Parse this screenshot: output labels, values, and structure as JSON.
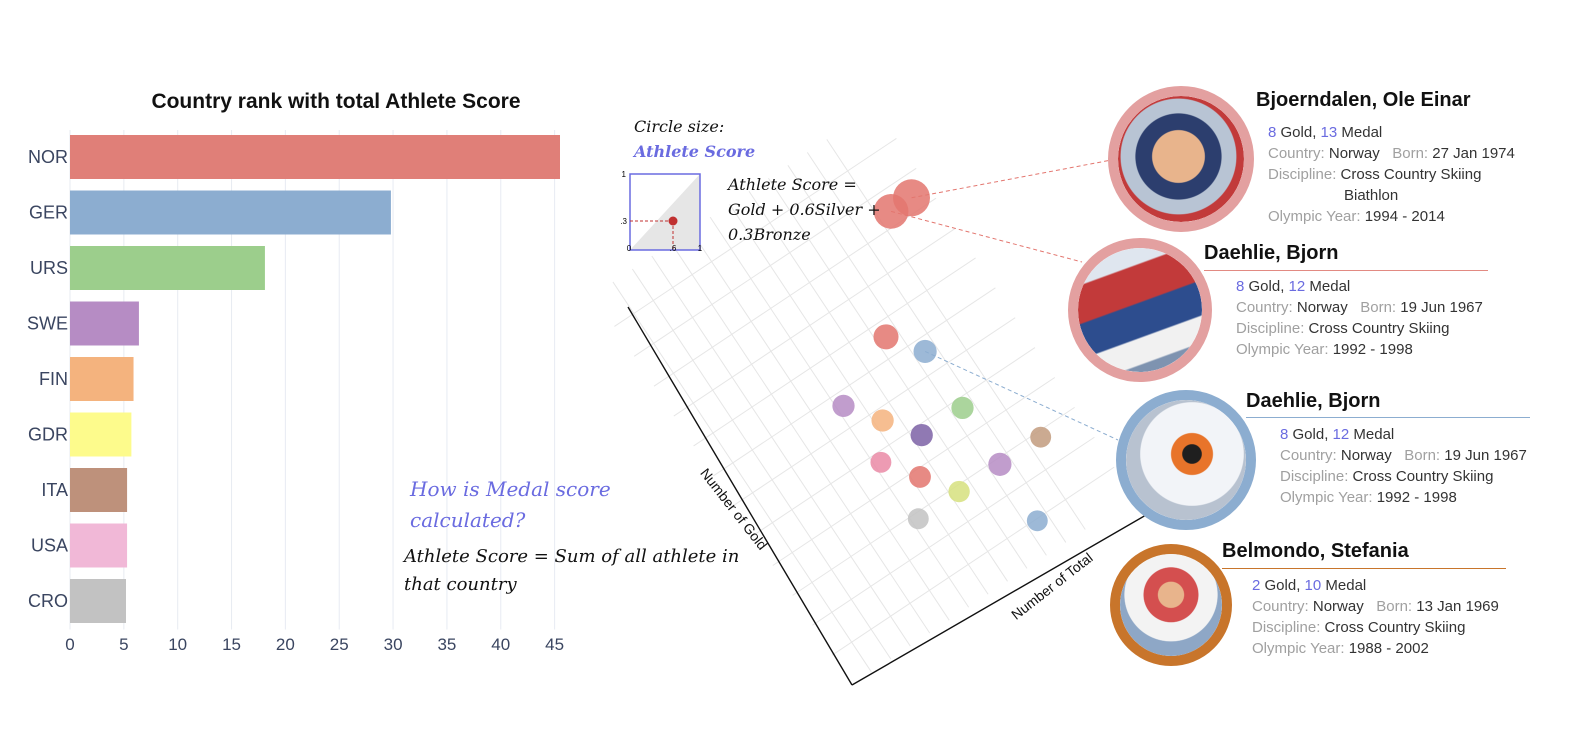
{
  "chart_data": [
    {
      "type": "bar",
      "title": "Country rank with total Athlete Score",
      "orientation": "horizontal",
      "categories": [
        "NOR",
        "GER",
        "URS",
        "SWE",
        "FIN",
        "GDR",
        "ITA",
        "USA",
        "CRO"
      ],
      "values": [
        45.5,
        29.8,
        18.1,
        6.4,
        5.9,
        5.7,
        5.3,
        5.3,
        5.2
      ],
      "colors": [
        "#e07f78",
        "#8cadd0",
        "#9cce8c",
        "#b68cc4",
        "#f4b37e",
        "#fdfb8c",
        "#be917b",
        "#f1b8d7",
        "#c2c2c2"
      ],
      "xlim": [
        0,
        46
      ],
      "x_ticks": [
        "0",
        "5",
        "10",
        "15",
        "20",
        "25",
        "30",
        "35",
        "40",
        "45"
      ],
      "grid": true
    },
    {
      "type": "scatter",
      "xlabel": "Number of Total",
      "ylabel": "Number of Gold",
      "rotation_deg": -45,
      "grid": true,
      "points": [
        {
          "total": 13,
          "gold": 8,
          "score": 10.0,
          "color": "#e3766f"
        },
        {
          "total": 12,
          "gold": 8,
          "score": 9.0,
          "color": "#e3766f"
        },
        {
          "total": 9,
          "gold": 5,
          "score": 4.8,
          "color": "#e3766f"
        },
        {
          "total": 10,
          "gold": 4,
          "score": 4.0,
          "color": "#8cadd0"
        },
        {
          "total": 6,
          "gold": 4,
          "score": 3.6,
          "color": "#b68cc4"
        },
        {
          "total": 7,
          "gold": 3,
          "score": 3.6,
          "color": "#f4b37e"
        },
        {
          "total": 10,
          "gold": 2,
          "score": 3.6,
          "color": "#9cce8c"
        },
        {
          "total": 6,
          "gold": 2,
          "score": 3.0,
          "color": "#ea8aa6"
        },
        {
          "total": 8,
          "gold": 2,
          "score": 3.6,
          "color": "#7c62a6"
        },
        {
          "total": 7,
          "gold": 1,
          "score": 3.4,
          "color": "#e3766f"
        },
        {
          "total": 10,
          "gold": 0,
          "score": 4.0,
          "color": "#b68cc4"
        },
        {
          "total": 6,
          "gold": 0,
          "score": 3.0,
          "color": "#c2c2c2"
        },
        {
          "total": 8,
          "gold": 0,
          "score": 3.2,
          "color": "#d6e07e"
        },
        {
          "total": 10,
          "gold": -2,
          "score": 3.0,
          "color": "#8cadd0"
        },
        {
          "total": 12,
          "gold": 0,
          "score": 3.0,
          "color": "#c29b7e"
        }
      ]
    }
  ],
  "legend": {
    "circle_size_label": "Circle size:",
    "circle_size_value": "Athlete Score",
    "axis_one": "1",
    "axis_three": ".3",
    "axis_zero": "0",
    "axis_six": ".6",
    "axis_one_x": "1",
    "formula_line1": "Athlete Score =",
    "formula_line2": "Gold + 0.6Silver +",
    "formula_line3": "0.3Bronze"
  },
  "note": {
    "title": "How is Medal score calculated?",
    "body": "Athlete Score = Sum of all athlete in that country"
  },
  "athletes": [
    {
      "name": "Bjoerndalen, Ole Einar",
      "gold": "8",
      "gold_word": "Gold,",
      "medal": "13",
      "medal_word": "Medal",
      "country_label": "Country:",
      "country": "Norway",
      "born_label": "Born:",
      "born": "27 Jan 1974",
      "discipline_label": "Discipline:",
      "discipline": "Cross Country Skiing",
      "discipline2": "Biathlon",
      "year_label": "Olympic Year:",
      "years": "1994 - 2014",
      "ring": "#e3a0a0"
    },
    {
      "name": "Daehlie, Bjorn",
      "gold": "8",
      "gold_word": "Gold,",
      "medal": "12",
      "medal_word": "Medal",
      "country_label": "Country:",
      "country": "Norway",
      "born_label": "Born:",
      "born": "19 Jun 1967",
      "discipline_label": "Discipline:",
      "discipline": "Cross Country Skiing",
      "year_label": "Olympic Year:",
      "years": "1992 - 1998",
      "ring": "#e3a0a0",
      "rule": "#e28a82"
    },
    {
      "name": "Daehlie, Bjorn",
      "gold": "8",
      "gold_word": "Gold,",
      "medal": "12",
      "medal_word": "Medal",
      "country_label": "Country:",
      "country": "Norway",
      "born_label": "Born:",
      "born": "19 Jun 1967",
      "discipline_label": "Discipline:",
      "discipline": "Cross Country Skiing",
      "year_label": "Olympic Year:",
      "years": "1992 - 1998",
      "ring": "#8cadd0",
      "rule": "#8cadd0"
    },
    {
      "name": "Belmondo, Stefania",
      "gold": "2",
      "gold_word": "Gold,",
      "medal": "10",
      "medal_word": "Medal",
      "country_label": "Country:",
      "country": "Norway",
      "born_label": "Born:",
      "born": "13 Jan 1969",
      "discipline_label": "Discipline:",
      "discipline": "Cross Country Skiing",
      "year_label": "Olympic Year:",
      "years": "1988 - 2002",
      "ring": "#c8752b",
      "rule": "#c8752b"
    }
  ]
}
